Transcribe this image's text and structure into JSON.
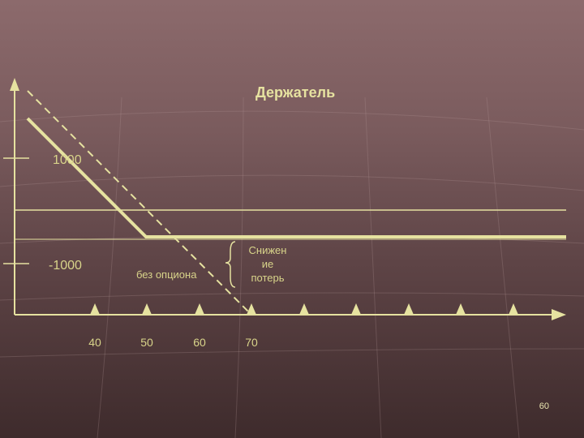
{
  "slide": {
    "title": "Держатель",
    "y_labels": [
      "1000",
      "-1000"
    ],
    "x_labels": [
      "40",
      "50",
      "60",
      "70"
    ],
    "annotation_without_option": "без опциона",
    "annotation_loss_reduction": [
      "Снижен",
      "ие",
      "потерь"
    ],
    "page_number": "60"
  },
  "colors": {
    "line": "#e6e2a0",
    "text": "#d8d48a",
    "background_top": "#8c6a6c",
    "background_bottom": "#3e2b2c"
  }
}
